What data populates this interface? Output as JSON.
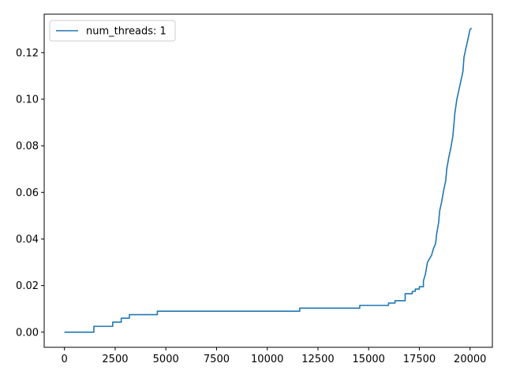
{
  "chart_data": {
    "type": "line",
    "title": "",
    "xlabel": "",
    "ylabel": "",
    "xlim": [
      -1000,
      21100
    ],
    "ylim": [
      -0.0065,
      0.1365
    ],
    "xticks": [
      0,
      2500,
      5000,
      7500,
      10000,
      12500,
      15000,
      17500,
      20000
    ],
    "xtick_labels": [
      "0",
      "2500",
      "5000",
      "7500",
      "10000",
      "12500",
      "15000",
      "17500",
      "20000"
    ],
    "yticks": [
      0.0,
      0.02,
      0.04,
      0.06,
      0.08,
      0.1,
      0.12
    ],
    "ytick_labels": [
      "0.00",
      "0.02",
      "0.04",
      "0.06",
      "0.08",
      "0.10",
      "0.12"
    ],
    "grid": false,
    "legend_position": "top-left",
    "series": [
      {
        "name": "num_threads: 1",
        "color": "#1f77b4",
        "step": true,
        "points": [
          [
            0,
            0.0
          ],
          [
            1450,
            0.0
          ],
          [
            1450,
            0.0025
          ],
          [
            2380,
            0.0025
          ],
          [
            2380,
            0.0043
          ],
          [
            2800,
            0.0043
          ],
          [
            2800,
            0.006
          ],
          [
            3200,
            0.006
          ],
          [
            3200,
            0.0075
          ],
          [
            4580,
            0.0075
          ],
          [
            4580,
            0.009
          ],
          [
            11600,
            0.009
          ],
          [
            11600,
            0.0103
          ],
          [
            14560,
            0.0103
          ],
          [
            14560,
            0.0115
          ],
          [
            15980,
            0.0115
          ],
          [
            15980,
            0.0125
          ],
          [
            16300,
            0.0125
          ],
          [
            16300,
            0.0135
          ],
          [
            16800,
            0.0135
          ],
          [
            16800,
            0.0165
          ],
          [
            17150,
            0.0165
          ],
          [
            17150,
            0.0175
          ],
          [
            17300,
            0.0175
          ],
          [
            17300,
            0.0185
          ],
          [
            17500,
            0.0185
          ],
          [
            17500,
            0.0195
          ],
          [
            17700,
            0.0195
          ],
          [
            17700,
            0.022
          ],
          [
            17800,
            0.025
          ],
          [
            17900,
            0.03
          ],
          [
            18100,
            0.033
          ],
          [
            18200,
            0.036
          ],
          [
            18300,
            0.038
          ],
          [
            18350,
            0.042
          ],
          [
            18450,
            0.047
          ],
          [
            18500,
            0.052
          ],
          [
            18600,
            0.056
          ],
          [
            18700,
            0.061
          ],
          [
            18800,
            0.065
          ],
          [
            18850,
            0.07
          ],
          [
            18950,
            0.075
          ],
          [
            19050,
            0.079
          ],
          [
            19150,
            0.084
          ],
          [
            19200,
            0.089
          ],
          [
            19250,
            0.094
          ],
          [
            19350,
            0.1
          ],
          [
            19450,
            0.104
          ],
          [
            19550,
            0.108
          ],
          [
            19650,
            0.112
          ],
          [
            19700,
            0.118
          ],
          [
            19800,
            0.122
          ],
          [
            19900,
            0.126
          ],
          [
            20000,
            0.13
          ],
          [
            20080,
            0.1305
          ]
        ]
      }
    ]
  }
}
